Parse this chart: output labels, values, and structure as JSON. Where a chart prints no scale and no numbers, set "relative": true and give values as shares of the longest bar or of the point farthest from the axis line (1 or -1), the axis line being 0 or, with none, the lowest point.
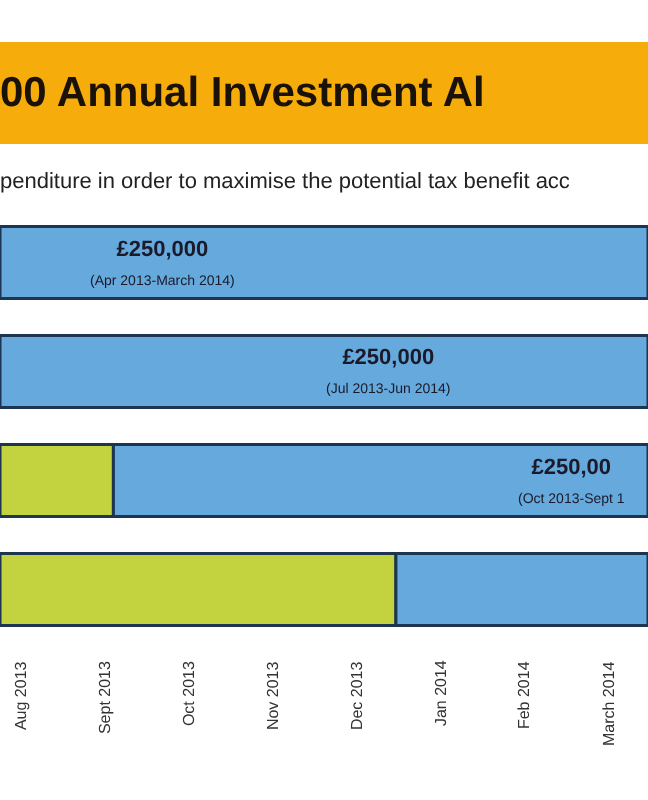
{
  "chart_data": {
    "type": "bar",
    "orientation": "horizontal",
    "stacked": true,
    "relative": true,
    "title": "00 Annual Investment Al",
    "subtitle": "penditure in order to maximise the potential tax benefit acc",
    "categories": [
      null,
      null,
      null,
      null
    ],
    "series": [
      {
        "color": "#c2d33f",
        "values": [
          null,
          null,
          0.175,
          0.611
        ]
      },
      {
        "color": "#65a9dd",
        "values": [
          1,
          1,
          0.825,
          0.389
        ]
      }
    ],
    "annotations": [
      "£250,000\n(Apr 2013-March 2014)",
      "£250,000\n(Jul 2013-Jun 2014)",
      "£250,00\n(Oct 2013-Sept 1",
      "Aug 2013",
      "Sept 2013",
      "Oct 2013",
      "Nov 2013",
      "Dec 2013",
      "Jan 2014",
      "Feb 2014",
      "March 2014"
    ]
  }
}
